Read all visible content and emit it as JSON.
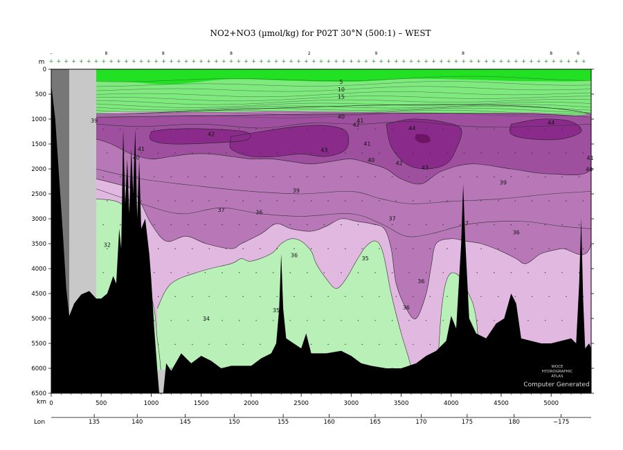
{
  "chart_data": {
    "type": "heatmap",
    "title": "NO2+NO3 (µmol/kg) for P02T 30°N (500:1) – WEST",
    "y_unit_label": "m",
    "x_unit_label": "km",
    "lon_label": "Lon",
    "xlim": [
      0,
      5400
    ],
    "ylim": [
      0,
      6500
    ],
    "y_ticks": [
      0,
      500,
      1000,
      1500,
      2000,
      2500,
      3000,
      3500,
      4000,
      4500,
      5000,
      5500,
      6000,
      6500
    ],
    "x_ticks": [
      0,
      500,
      1000,
      1500,
      2000,
      2500,
      3000,
      3500,
      4000,
      4500,
      5000
    ],
    "lon_ticks": [
      {
        "km": 430,
        "label": "135"
      },
      {
        "km": 860,
        "label": "140"
      },
      {
        "km": 1340,
        "label": "145"
      },
      {
        "km": 1830,
        "label": "150"
      },
      {
        "km": 2320,
        "label": "155"
      },
      {
        "km": 2780,
        "label": "160"
      },
      {
        "km": 3240,
        "label": "165"
      },
      {
        "km": 3700,
        "label": "170"
      },
      {
        "km": 4160,
        "label": "175"
      },
      {
        "km": 4630,
        "label": "180"
      },
      {
        "km": 5100,
        "label": "−175"
      }
    ],
    "station_labels": [
      {
        "km": 0,
        "label": "–"
      },
      {
        "km": 550,
        "label": "8"
      },
      {
        "km": 1120,
        "label": "8"
      },
      {
        "km": 1800,
        "label": "8"
      },
      {
        "km": 2580,
        "label": "2"
      },
      {
        "km": 3250,
        "label": "9"
      },
      {
        "km": 4120,
        "label": "8"
      },
      {
        "km": 5000,
        "label": "8"
      },
      {
        "km": 5270,
        "label": "6"
      }
    ],
    "color_bands": [
      {
        "range": "0–5",
        "color": "#22e022"
      },
      {
        "range": "5–35",
        "color": "#7eea7e"
      },
      {
        "range": "35–37",
        "color": "#e0b8e0"
      },
      {
        "range": "37–40",
        "color": "#b878b8"
      },
      {
        "range": "40–42",
        "color": "#9e509e"
      },
      {
        "range": ">42",
        "color": "#8a2a8a"
      }
    ],
    "contour_labels": [
      {
        "km": 2900,
        "depth": 250,
        "label": "5"
      },
      {
        "km": 2900,
        "depth": 400,
        "label": "10"
      },
      {
        "km": 2900,
        "depth": 550,
        "label": "15"
      },
      {
        "km": 2900,
        "depth": 950,
        "label": "40"
      },
      {
        "km": 430,
        "depth": 1030,
        "label": "39"
      },
      {
        "km": 3050,
        "depth": 1110,
        "label": "42"
      },
      {
        "km": 3090,
        "depth": 1030,
        "label": "41"
      },
      {
        "km": 1600,
        "depth": 1300,
        "label": "42"
      },
      {
        "km": 3610,
        "depth": 1180,
        "label": "44"
      },
      {
        "km": 5000,
        "depth": 1070,
        "label": "44"
      },
      {
        "km": 900,
        "depth": 1600,
        "label": "41"
      },
      {
        "km": 850,
        "depth": 1770,
        "label": "40"
      },
      {
        "km": 2730,
        "depth": 1620,
        "label": "43"
      },
      {
        "km": 3160,
        "depth": 1490,
        "label": "41"
      },
      {
        "km": 3200,
        "depth": 1820,
        "label": "40"
      },
      {
        "km": 3480,
        "depth": 1880,
        "label": "42"
      },
      {
        "km": 3740,
        "depth": 1970,
        "label": "43"
      },
      {
        "km": 5390,
        "depth": 1780,
        "label": "41"
      },
      {
        "km": 5380,
        "depth": 2010,
        "label": "40"
      },
      {
        "km": 2450,
        "depth": 2430,
        "label": "39"
      },
      {
        "km": 4520,
        "depth": 2270,
        "label": "39"
      },
      {
        "km": 1700,
        "depth": 2820,
        "label": "37"
      },
      {
        "km": 2080,
        "depth": 2870,
        "label": "36"
      },
      {
        "km": 3410,
        "depth": 2990,
        "label": "37"
      },
      {
        "km": 4140,
        "depth": 3090,
        "label": "37"
      },
      {
        "km": 4650,
        "depth": 3270,
        "label": "36"
      },
      {
        "km": 560,
        "depth": 3520,
        "label": "32"
      },
      {
        "km": 2430,
        "depth": 3730,
        "label": "36"
      },
      {
        "km": 3140,
        "depth": 3790,
        "label": "35"
      },
      {
        "km": 3700,
        "depth": 4250,
        "label": "36"
      },
      {
        "km": 3550,
        "depth": 4780,
        "label": "36"
      },
      {
        "km": 2250,
        "depth": 4830,
        "label": "35"
      },
      {
        "km": 1550,
        "depth": 5000,
        "label": "34"
      }
    ],
    "watermark_lines": [
      "WOCE",
      "HYDROGRAPHIC",
      "ATLAS"
    ],
    "computer_generated": "Computer Generated"
  }
}
